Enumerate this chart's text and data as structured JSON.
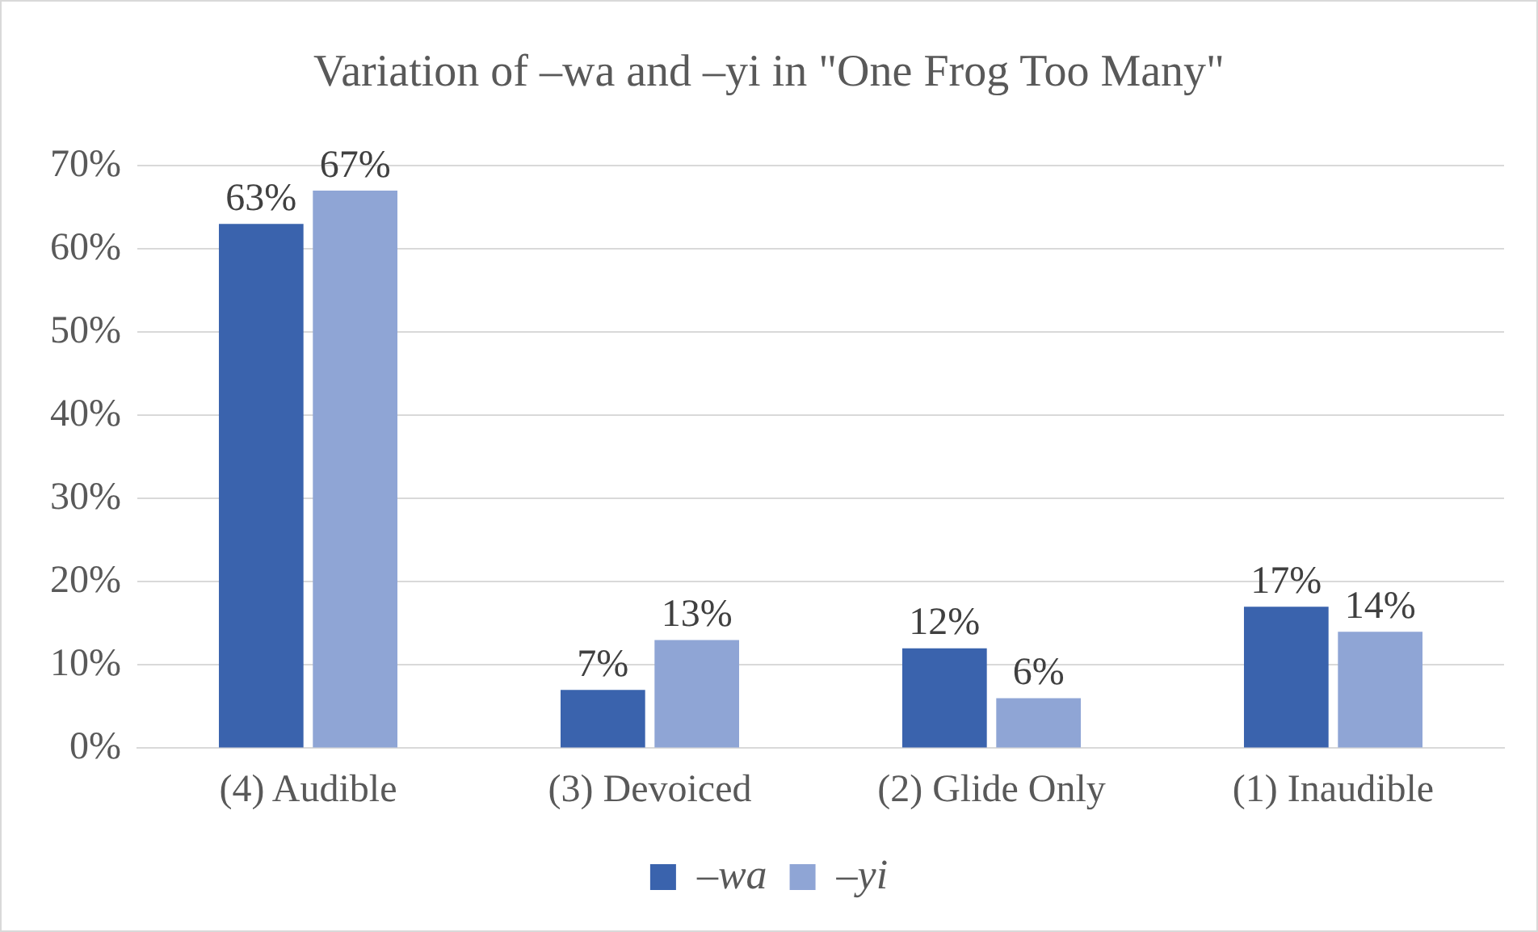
{
  "chart_data": {
    "type": "bar",
    "title": "Variation of –wa and –yi in \"One Frog Too Many\"",
    "categories": [
      "(4) Audible",
      "(3) Devoiced",
      "(2) Glide Only",
      "(1) Inaudible"
    ],
    "series": [
      {
        "name": "–wa",
        "color": "#3a63ad",
        "values": [
          63,
          7,
          12,
          17
        ],
        "value_labels": [
          "63%",
          "7%",
          "12%",
          "17%"
        ]
      },
      {
        "name": "–yi",
        "color": "#8fa5d5",
        "values": [
          67,
          13,
          6,
          14
        ],
        "value_labels": [
          "67%",
          "13%",
          "6%",
          "14%"
        ]
      }
    ],
    "ylim": [
      0,
      70
    ],
    "yticks": [
      {
        "value": 0,
        "label": "0%"
      },
      {
        "value": 10,
        "label": "10%"
      },
      {
        "value": 20,
        "label": "20%"
      },
      {
        "value": 30,
        "label": "30%"
      },
      {
        "value": 40,
        "label": "40%"
      },
      {
        "value": 50,
        "label": "50%"
      },
      {
        "value": 60,
        "label": "60%"
      },
      {
        "value": 70,
        "label": "70%"
      }
    ],
    "grid": "y",
    "legend": "bottom"
  }
}
